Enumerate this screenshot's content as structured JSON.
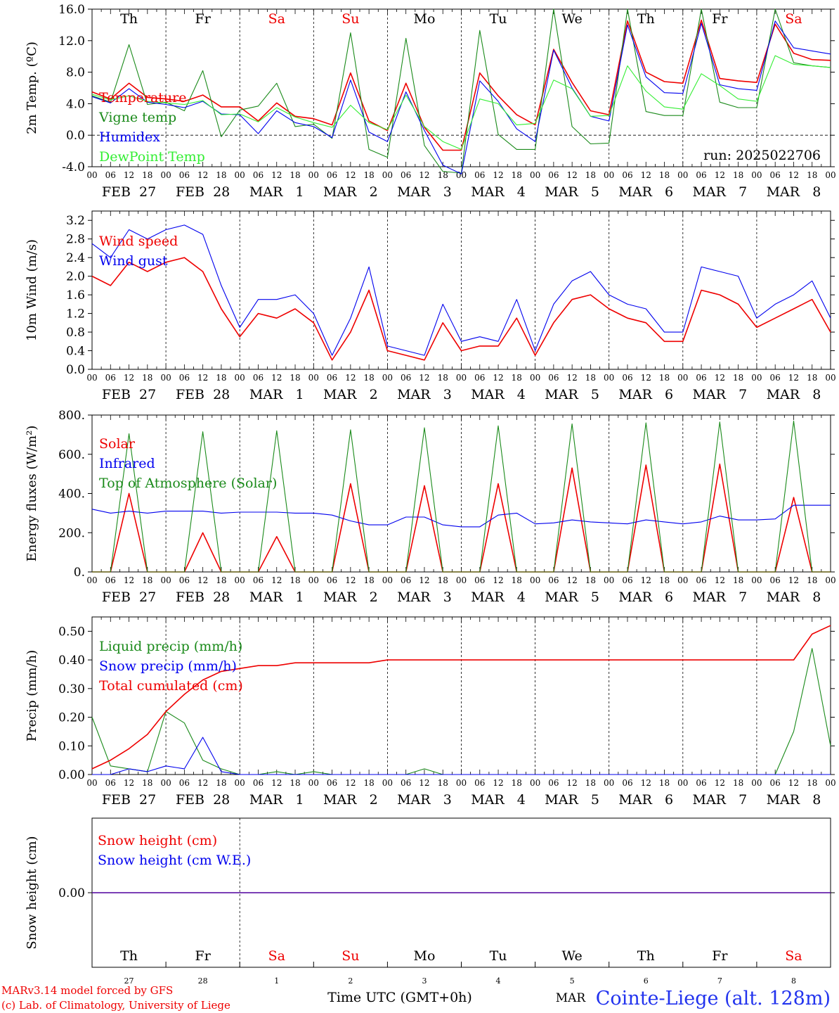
{
  "meta": {
    "run_label": "run: 2025022706",
    "credit_lines": [
      "MARv3.14 model forced by GFS",
      "(c) Lab. of Climatology, University of Liege"
    ],
    "xaxis_title": "Time UTC (GMT+0h)",
    "month_label": "MAR",
    "station": "Cointe-Liege (alt. 128m)",
    "hour_ticks": [
      "00",
      "06",
      "12",
      "18"
    ],
    "final_hour_tick": "00",
    "days": [
      {
        "weekday": "Th",
        "date": "FEB  27",
        "num": "27",
        "weekend": false
      },
      {
        "weekday": "Fr",
        "date": "FEB  28",
        "num": "28",
        "weekend": false
      },
      {
        "weekday": "Sa",
        "date": "MAR   1",
        "num": "1",
        "weekend": true
      },
      {
        "weekday": "Su",
        "date": "MAR   2",
        "num": "2",
        "weekend": true
      },
      {
        "weekday": "Mo",
        "date": "MAR   3",
        "num": "3",
        "weekend": false
      },
      {
        "weekday": "Tu",
        "date": "MAR   4",
        "num": "4",
        "weekend": false
      },
      {
        "weekday": "We",
        "date": "MAR   5",
        "num": "5",
        "weekend": false
      },
      {
        "weekday": "Th",
        "date": "MAR   6",
        "num": "6",
        "weekend": false
      },
      {
        "weekday": "Fr",
        "date": "MAR   7",
        "num": "7",
        "weekend": false
      },
      {
        "weekday": "Sa",
        "date": "MAR   8",
        "num": "8",
        "weekend": true
      }
    ],
    "colors": {
      "red": "#ee0000",
      "green": "#1a8a1a",
      "blue": "#0000ee",
      "lightgreen": "#33ee33",
      "axis": "#000000",
      "weekend": "#ee0000"
    }
  },
  "chart_data": [
    {
      "id": "temperature",
      "type": "line",
      "ylabel": "2m Temp. (ºC)",
      "ylim": [
        -4.0,
        16.0
      ],
      "yticks": [
        -4.0,
        0.0,
        4.0,
        8.0,
        12.0,
        16.0
      ],
      "ytick_labels": [
        "-4.0",
        "0.0",
        "4.0",
        "8.0",
        "12.0",
        "16.0"
      ],
      "zero_line": true,
      "x": [
        0,
        6,
        12,
        18,
        24,
        30,
        36,
        42,
        48,
        54,
        60,
        66,
        72,
        78,
        84,
        90,
        96,
        102,
        108,
        114,
        120,
        126,
        132,
        138,
        144,
        150,
        156,
        162,
        168,
        174,
        180,
        186,
        192,
        198,
        204,
        210,
        216,
        222,
        228,
        234,
        240
      ],
      "series": [
        {
          "name": "Temperature",
          "color": "red",
          "values": [
            5.5,
            4.6,
            6.6,
            4.8,
            4.6,
            4.3,
            5.1,
            3.6,
            3.6,
            1.8,
            4.1,
            2.4,
            2.1,
            1.3,
            7.9,
            1.8,
            0.6,
            6.6,
            1.0,
            -1.9,
            -1.9,
            7.9,
            5.0,
            2.6,
            1.3,
            10.9,
            6.7,
            3.1,
            2.6,
            14.5,
            8.0,
            6.8,
            6.6,
            14.6,
            7.2,
            6.9,
            6.7,
            14.1,
            10.4,
            9.6,
            9.5
          ]
        },
        {
          "name": "Vigne temp",
          "color": "green",
          "values": [
            5.0,
            4.2,
            11.5,
            3.9,
            4.2,
            3.1,
            8.2,
            -0.2,
            3.2,
            3.7,
            6.6,
            1.1,
            1.4,
            -0.4,
            13.0,
            -1.8,
            -2.8,
            12.3,
            -1.3,
            -4.6,
            -4.8,
            13.3,
            0.1,
            -1.8,
            -1.8,
            16.0,
            1.1,
            -1.1,
            -1.0,
            16.0,
            3.0,
            2.5,
            2.5,
            16.0,
            4.2,
            3.5,
            3.5,
            16.0,
            9.2,
            8.8,
            8.6
          ]
        },
        {
          "name": "Humidex",
          "color": "blue",
          "values": [
            4.9,
            4.1,
            5.9,
            4.2,
            3.9,
            3.5,
            4.3,
            2.7,
            2.6,
            0.2,
            3.1,
            1.6,
            1.1,
            -0.3,
            7.0,
            0.4,
            -0.8,
            5.5,
            0.6,
            -3.8,
            -4.9,
            6.9,
            4.3,
            0.8,
            -0.8,
            10.8,
            6.0,
            2.4,
            1.8,
            14.0,
            7.4,
            5.4,
            5.3,
            14.2,
            6.4,
            5.9,
            5.7,
            14.5,
            11.1,
            10.7,
            10.3
          ]
        },
        {
          "name": "DewPoint Temp",
          "color": "lightgreen",
          "values": [
            5.2,
            4.5,
            5.0,
            4.3,
            4.1,
            3.9,
            4.4,
            2.6,
            2.7,
            1.7,
            3.5,
            2.3,
            1.6,
            1.0,
            3.8,
            1.6,
            0.7,
            5.1,
            1.1,
            -0.8,
            -1.8,
            4.6,
            4.0,
            1.3,
            1.5,
            7.0,
            5.9,
            2.4,
            2.5,
            8.8,
            5.6,
            3.6,
            3.3,
            7.8,
            6.3,
            4.6,
            4.3,
            10.1,
            9.0,
            8.8,
            8.6
          ]
        }
      ]
    },
    {
      "id": "wind",
      "type": "line",
      "ylabel": "10m Wind (m/s)",
      "ylim": [
        0.0,
        3.4
      ],
      "yticks": [
        0.0,
        0.4,
        0.8,
        1.2,
        1.6,
        2.0,
        2.4,
        2.8,
        3.2
      ],
      "ytick_labels": [
        "0.0",
        "0.4",
        "0.8",
        "1.2",
        "1.6",
        "2.0",
        "2.4",
        "2.8",
        "3.2"
      ],
      "x": [
        0,
        6,
        12,
        18,
        24,
        30,
        36,
        42,
        48,
        54,
        60,
        66,
        72,
        78,
        84,
        90,
        96,
        102,
        108,
        114,
        120,
        126,
        132,
        138,
        144,
        150,
        156,
        162,
        168,
        174,
        180,
        186,
        192,
        198,
        204,
        210,
        216,
        222,
        228,
        234,
        240
      ],
      "series": [
        {
          "name": "Wind speed",
          "color": "red",
          "values": [
            2.0,
            1.8,
            2.3,
            2.1,
            2.3,
            2.4,
            2.1,
            1.3,
            0.7,
            1.2,
            1.1,
            1.3,
            1.0,
            0.2,
            0.8,
            1.7,
            0.4,
            0.3,
            0.2,
            1.0,
            0.4,
            0.5,
            0.5,
            1.1,
            0.3,
            1.0,
            1.5,
            1.6,
            1.3,
            1.1,
            1.0,
            0.6,
            0.6,
            1.7,
            1.6,
            1.4,
            0.9,
            1.1,
            1.3,
            1.5,
            0.8
          ]
        },
        {
          "name": "Wind gust",
          "color": "blue",
          "values": [
            2.7,
            2.4,
            3.0,
            2.8,
            3.0,
            3.1,
            2.9,
            1.8,
            0.9,
            1.5,
            1.5,
            1.6,
            1.2,
            0.3,
            1.1,
            2.2,
            0.5,
            0.4,
            0.3,
            1.4,
            0.6,
            0.7,
            0.6,
            1.5,
            0.4,
            1.4,
            1.9,
            2.1,
            1.6,
            1.4,
            1.3,
            0.8,
            0.8,
            2.2,
            2.1,
            2.0,
            1.1,
            1.4,
            1.6,
            1.9,
            1.1
          ]
        }
      ]
    },
    {
      "id": "energy",
      "type": "line",
      "ylabel": "Energy fluxes (W/m²)",
      "ylim": [
        0,
        800
      ],
      "yticks": [
        0,
        200,
        400,
        600,
        800
      ],
      "ytick_labels": [
        "0.",
        "200.",
        "400.",
        "600.",
        "800."
      ],
      "x": [
        0,
        6,
        12,
        18,
        24,
        30,
        36,
        42,
        48,
        54,
        60,
        66,
        72,
        78,
        84,
        90,
        96,
        102,
        108,
        114,
        120,
        126,
        132,
        138,
        144,
        150,
        156,
        162,
        168,
        174,
        180,
        186,
        192,
        198,
        204,
        210,
        216,
        222,
        228,
        234,
        240
      ],
      "series": [
        {
          "name": "Solar",
          "color": "red",
          "values": [
            0,
            0,
            400,
            0,
            0,
            0,
            200,
            0,
            0,
            0,
            180,
            0,
            0,
            0,
            450,
            0,
            0,
            0,
            440,
            0,
            0,
            0,
            450,
            0,
            0,
            0,
            530,
            0,
            0,
            0,
            545,
            0,
            0,
            0,
            550,
            0,
            0,
            0,
            380,
            0,
            0
          ]
        },
        {
          "name": "Infrared",
          "color": "blue",
          "values": [
            320,
            300,
            310,
            300,
            310,
            310,
            310,
            300,
            305,
            305,
            305,
            300,
            300,
            290,
            260,
            240,
            240,
            280,
            280,
            240,
            230,
            230,
            290,
            300,
            245,
            250,
            265,
            255,
            250,
            245,
            265,
            255,
            245,
            255,
            285,
            265,
            265,
            270,
            340,
            340,
            340
          ]
        },
        {
          "name": "Top of Atmosphere (Solar)",
          "color": "green",
          "values": [
            0,
            0,
            705,
            0,
            0,
            0,
            715,
            0,
            0,
            0,
            720,
            0,
            0,
            0,
            725,
            0,
            0,
            0,
            735,
            0,
            0,
            0,
            745,
            0,
            0,
            0,
            755,
            0,
            0,
            0,
            760,
            0,
            0,
            0,
            765,
            0,
            0,
            0,
            770,
            0,
            0
          ]
        }
      ]
    },
    {
      "id": "precip",
      "type": "line",
      "ylabel": "Precip (mm/h)",
      "ylim": [
        0.0,
        0.55
      ],
      "yticks": [
        0.0,
        0.1,
        0.2,
        0.3,
        0.4,
        0.5
      ],
      "ytick_labels": [
        "0.00",
        "0.10",
        "0.20",
        "0.30",
        "0.40",
        "0.50"
      ],
      "x": [
        0,
        6,
        12,
        18,
        24,
        30,
        36,
        42,
        48,
        54,
        60,
        66,
        72,
        78,
        84,
        90,
        96,
        102,
        108,
        114,
        120,
        126,
        132,
        138,
        144,
        150,
        156,
        162,
        168,
        174,
        180,
        186,
        192,
        198,
        204,
        210,
        216,
        222,
        228,
        234,
        240
      ],
      "series": [
        {
          "name": "Liquid precip (mm/h)",
          "color": "green",
          "values": [
            0.2,
            0.03,
            0.02,
            0.01,
            0.22,
            0.18,
            0.05,
            0.02,
            0.0,
            0.0,
            0.01,
            0.0,
            0.01,
            0.0,
            0.0,
            0.0,
            0.0,
            0.0,
            0.02,
            0.0,
            0.0,
            0.0,
            0.0,
            0.0,
            0.0,
            0.0,
            0.0,
            0.0,
            0.0,
            0.0,
            0.0,
            0.0,
            0.0,
            0.0,
            0.0,
            0.0,
            0.0,
            0.0,
            0.15,
            0.44,
            0.1
          ]
        },
        {
          "name": "Snow precip (mm/h)",
          "color": "blue",
          "values": [
            0.0,
            0.0,
            0.02,
            0.01,
            0.03,
            0.02,
            0.13,
            0.01,
            0.0,
            0.0,
            0.0,
            0.0,
            0.0,
            0.0,
            0.0,
            0.0,
            0.0,
            0.0,
            0.0,
            0.0,
            0.0,
            0.0,
            0.0,
            0.0,
            0.0,
            0.0,
            0.0,
            0.0,
            0.0,
            0.0,
            0.0,
            0.0,
            0.0,
            0.0,
            0.0,
            0.0,
            0.0,
            0.0,
            0.0,
            0.0,
            0.0
          ]
        },
        {
          "name": "Total cumulated (cm)",
          "color": "red",
          "values": [
            0.02,
            0.05,
            0.09,
            0.14,
            0.22,
            0.28,
            0.33,
            0.36,
            0.37,
            0.38,
            0.38,
            0.39,
            0.39,
            0.39,
            0.39,
            0.39,
            0.4,
            0.4,
            0.4,
            0.4,
            0.4,
            0.4,
            0.4,
            0.4,
            0.4,
            0.4,
            0.4,
            0.4,
            0.4,
            0.4,
            0.4,
            0.4,
            0.4,
            0.4,
            0.4,
            0.4,
            0.4,
            0.4,
            0.4,
            0.49,
            0.52
          ]
        }
      ]
    },
    {
      "id": "snow",
      "type": "line",
      "ylabel": "Snow height (cm)",
      "yticks": [
        0.0
      ],
      "ytick_labels": [
        "0.00"
      ],
      "x": [
        0,
        240
      ],
      "series": [
        {
          "name": "Snow height (cm)",
          "color": "red",
          "values": [
            0.0,
            0.0
          ]
        },
        {
          "name": "Snow height (cm W.E.)",
          "color": "blue",
          "values": [
            0.0,
            0.0
          ]
        }
      ]
    }
  ]
}
